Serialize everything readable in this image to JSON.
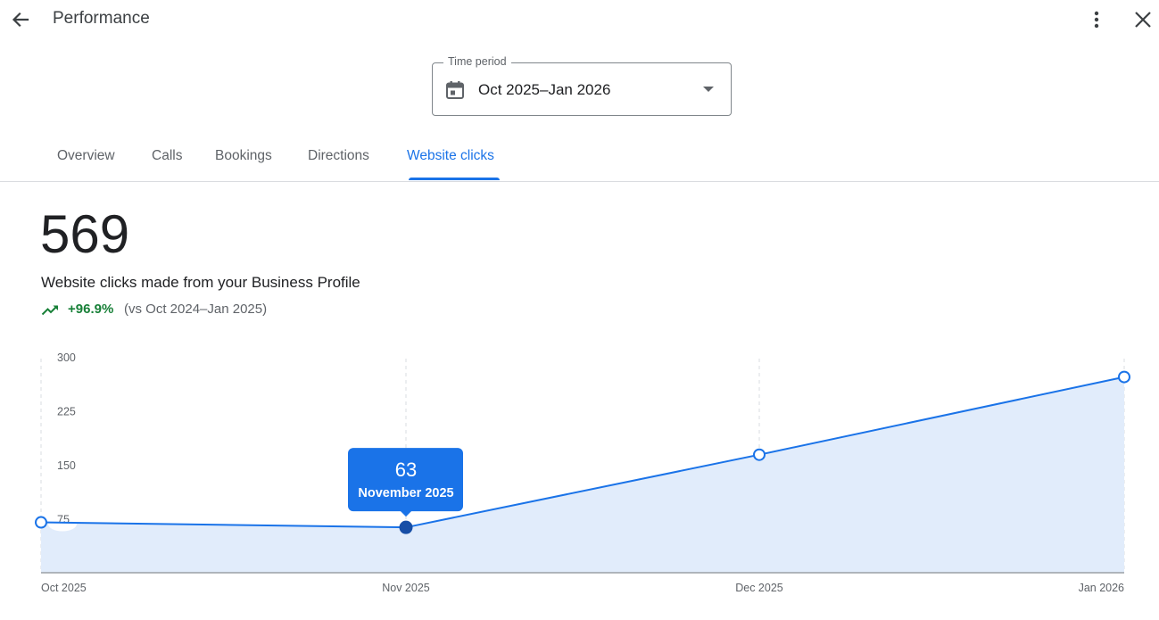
{
  "header": {
    "title": "Performance",
    "back_icon": "arrow-back-icon",
    "more_icon": "more-vert-icon",
    "close_icon": "close-icon"
  },
  "time_period": {
    "label": "Time period",
    "value": "Oct 2025–Jan 2026",
    "icon": "calendar-icon"
  },
  "tabs": [
    {
      "label": "Overview",
      "active": false
    },
    {
      "label": "Calls",
      "active": false
    },
    {
      "label": "Bookings",
      "active": false
    },
    {
      "label": "Directions",
      "active": false
    },
    {
      "label": "Website clicks",
      "active": true
    }
  ],
  "metric": {
    "value": "569",
    "description": "Website clicks made from your Business Profile",
    "change": "+96.9%",
    "comparison": "(vs Oct 2024–Jan 2025)",
    "change_color": "#188038"
  },
  "colors": {
    "accent": "#1a73e8",
    "area_fill": "#e1ecfb",
    "tooltip_bg": "#1a73e8",
    "active_point": "#174ea6"
  },
  "chart_data": {
    "type": "area",
    "categories": [
      "Oct 2025",
      "Nov 2025",
      "Dec 2025",
      "Jan 2026"
    ],
    "values": [
      70,
      63,
      164,
      272
    ],
    "ylim": [
      0,
      300
    ],
    "yticks": [
      75,
      150,
      225,
      300
    ],
    "grid": "vertical dashed",
    "tooltip": {
      "value": "63",
      "label": "November 2025",
      "index": 1
    }
  }
}
